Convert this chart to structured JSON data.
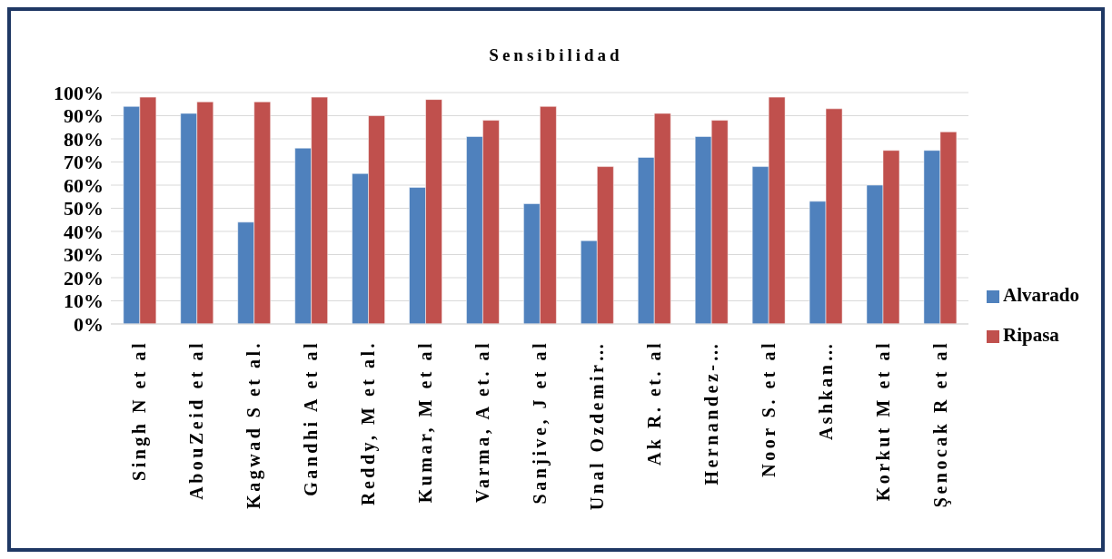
{
  "chart_data": {
    "type": "bar",
    "title": "Sensibilidad",
    "categories": [
      "Singh N et al",
      "AbouZeid et al",
      "Kagwad S et al.",
      "Gandhi A et al",
      "Reddy, M et al.",
      "Kumar, M et al",
      "Varma, A et. al",
      "Sanjive, J et al",
      "Unal Ozdemir…",
      "Ak R. et. al",
      "Hernandez-…",
      "Noor S. et al",
      "Ashkan…",
      "Korkut M et al",
      "Şenocak R et al"
    ],
    "series": [
      {
        "name": "Alvarado",
        "color": "#4f81bd",
        "values": [
          94,
          91,
          44,
          76,
          65,
          59,
          81,
          52,
          36,
          72,
          81,
          68,
          53,
          60,
          75
        ]
      },
      {
        "name": "Ripasa",
        "color": "#c0504d",
        "values": [
          98,
          96,
          96,
          98,
          90,
          97,
          88,
          94,
          68,
          91,
          88,
          98,
          93,
          75,
          83
        ]
      }
    ],
    "ylim": [
      0,
      100
    ],
    "yticks": [
      {
        "value": 0,
        "label": "0%"
      },
      {
        "value": 10,
        "label": "10%"
      },
      {
        "value": 20,
        "label": "20%"
      },
      {
        "value": 30,
        "label": "30%"
      },
      {
        "value": 40,
        "label": "40%"
      },
      {
        "value": 50,
        "label": "50%"
      },
      {
        "value": 60,
        "label": "60%"
      },
      {
        "value": 70,
        "label": "70%"
      },
      {
        "value": 80,
        "label": "80%"
      },
      {
        "value": 90,
        "label": "90%"
      },
      {
        "value": 100,
        "label": "100%"
      }
    ],
    "grid": "y",
    "legend": "right"
  }
}
